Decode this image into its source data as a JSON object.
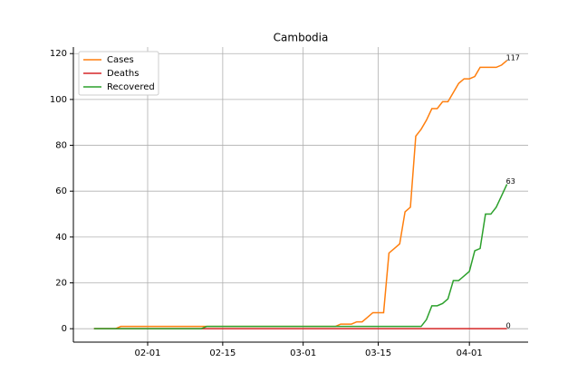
{
  "chart_data": {
    "type": "line",
    "title": "Cambodia",
    "categories": [
      "01-22",
      "01-23",
      "01-24",
      "01-25",
      "01-26",
      "01-27",
      "01-28",
      "01-29",
      "01-30",
      "01-31",
      "02-01",
      "02-02",
      "02-03",
      "02-04",
      "02-05",
      "02-06",
      "02-07",
      "02-08",
      "02-09",
      "02-10",
      "02-11",
      "02-12",
      "02-13",
      "02-14",
      "02-15",
      "02-16",
      "02-17",
      "02-18",
      "02-19",
      "02-20",
      "02-21",
      "02-22",
      "02-23",
      "02-24",
      "02-25",
      "02-26",
      "02-27",
      "02-28",
      "02-29",
      "03-01",
      "03-02",
      "03-03",
      "03-04",
      "03-05",
      "03-06",
      "03-07",
      "03-08",
      "03-09",
      "03-10",
      "03-11",
      "03-12",
      "03-13",
      "03-14",
      "03-15",
      "03-16",
      "03-17",
      "03-18",
      "03-19",
      "03-20",
      "03-21",
      "03-22",
      "03-23",
      "03-24",
      "03-25",
      "03-26",
      "03-27",
      "03-28",
      "03-29",
      "03-30",
      "03-31",
      "04-01",
      "04-02",
      "04-03",
      "04-04",
      "04-05",
      "04-06",
      "04-07",
      "04-08"
    ],
    "series": [
      {
        "name": "Cases",
        "color": "#ff7f0e",
        "values": [
          0,
          0,
          0,
          0,
          0,
          1,
          1,
          1,
          1,
          1,
          1,
          1,
          1,
          1,
          1,
          1,
          1,
          1,
          1,
          1,
          1,
          1,
          1,
          1,
          1,
          1,
          1,
          1,
          1,
          1,
          1,
          1,
          1,
          1,
          1,
          1,
          1,
          1,
          1,
          1,
          1,
          1,
          1,
          1,
          1,
          1,
          2,
          2,
          2,
          3,
          3,
          5,
          7,
          7,
          7,
          33,
          35,
          37,
          51,
          53,
          84,
          87,
          91,
          96,
          96,
          99,
          99,
          103,
          107,
          109,
          109,
          110,
          114,
          114,
          114,
          114,
          115,
          117
        ]
      },
      {
        "name": "Deaths",
        "color": "#d62728",
        "values": [
          0,
          0,
          0,
          0,
          0,
          0,
          0,
          0,
          0,
          0,
          0,
          0,
          0,
          0,
          0,
          0,
          0,
          0,
          0,
          0,
          0,
          0,
          0,
          0,
          0,
          0,
          0,
          0,
          0,
          0,
          0,
          0,
          0,
          0,
          0,
          0,
          0,
          0,
          0,
          0,
          0,
          0,
          0,
          0,
          0,
          0,
          0,
          0,
          0,
          0,
          0,
          0,
          0,
          0,
          0,
          0,
          0,
          0,
          0,
          0,
          0,
          0,
          0,
          0,
          0,
          0,
          0,
          0,
          0,
          0,
          0,
          0,
          0,
          0,
          0,
          0,
          0,
          0
        ]
      },
      {
        "name": "Recovered",
        "color": "#2ca02c",
        "values": [
          0,
          0,
          0,
          0,
          0,
          0,
          0,
          0,
          0,
          0,
          0,
          0,
          0,
          0,
          0,
          0,
          0,
          0,
          0,
          0,
          0,
          1,
          1,
          1,
          1,
          1,
          1,
          1,
          1,
          1,
          1,
          1,
          1,
          1,
          1,
          1,
          1,
          1,
          1,
          1,
          1,
          1,
          1,
          1,
          1,
          1,
          1,
          1,
          1,
          1,
          1,
          1,
          1,
          1,
          1,
          1,
          1,
          1,
          1,
          1,
          1,
          1,
          4,
          10,
          10,
          11,
          13,
          21,
          21,
          23,
          25,
          34,
          35,
          50,
          50,
          53,
          58,
          63
        ]
      }
    ],
    "xticks": [
      "02-01",
      "02-15",
      "03-01",
      "03-15",
      "04-01"
    ],
    "xlim": [
      -3.85,
      80.95
    ],
    "ylim": [
      -5.85,
      122.85
    ],
    "yticks": [
      0,
      20,
      40,
      60,
      80,
      100,
      120
    ],
    "grid": true,
    "legend": "upper left",
    "end_labels": true
  }
}
